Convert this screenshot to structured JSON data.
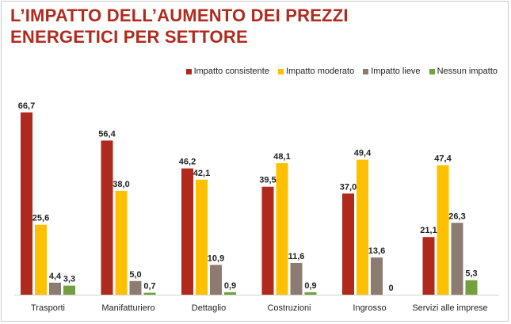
{
  "title_lines": [
    "L’IMPATTO DELL’AUMENTO DEI PREZZI",
    "ENERGETICI PER SETTORE"
  ],
  "colors": {
    "title": "#b02a1d",
    "series": [
      "#b0291d",
      "#ffc000",
      "#8c7b70",
      "#72a03f"
    ]
  },
  "chart_data": {
    "type": "bar",
    "title": "L’IMPATTO DELL’AUMENTO DEI PREZZI ENERGETICI PER SETTORE",
    "categories": [
      "Trasporti",
      "Manifatturiero",
      "Dettaglio",
      "Costruzioni",
      "Ingrosso",
      "Servizi alle imprese"
    ],
    "series": [
      {
        "name": "Impatto consistente",
        "values": [
          66.7,
          56.4,
          46.2,
          39.5,
          37.0,
          21.1
        ],
        "labels": [
          "66,7",
          "56,4",
          "46,2",
          "39,5",
          "37,0",
          "21,1"
        ]
      },
      {
        "name": "Impatto moderato",
        "values": [
          25.6,
          38.0,
          42.1,
          48.1,
          49.4,
          47.4
        ],
        "labels": [
          "25,6",
          "38,0",
          "42,1",
          "48,1",
          "49,4",
          "47,4"
        ]
      },
      {
        "name": "Impatto lieve",
        "values": [
          4.4,
          5.0,
          10.9,
          11.6,
          13.6,
          26.3
        ],
        "labels": [
          "4,4",
          "5,0",
          "10,9",
          "11,6",
          "13,6",
          "26,3"
        ]
      },
      {
        "name": "Nessun impatto",
        "values": [
          3.3,
          0.7,
          0.9,
          0.9,
          0,
          5.3
        ],
        "labels": [
          "3,3",
          "0,7",
          "0,9",
          "0,9",
          "0",
          "5,3"
        ]
      }
    ],
    "ylim": [
      0,
      70
    ],
    "grid": false,
    "legend_position": "top-right"
  }
}
